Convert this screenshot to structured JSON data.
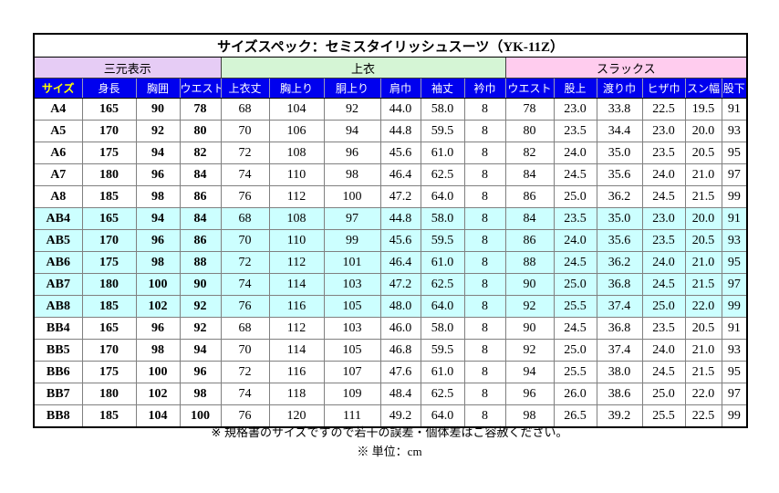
{
  "table": {
    "title": "サイズスペック：セミスタイリッシュスーツ（YK-11Z）",
    "groups": [
      {
        "label": "三元表示",
        "span": 4,
        "bg": "#E6CCF5"
      },
      {
        "label": "上衣",
        "span": 6,
        "bg": "#D5F5D5"
      },
      {
        "label": "スラックス",
        "span": 6,
        "bg": "#FFCCEE"
      }
    ],
    "columns": [
      "サイズ",
      "身長",
      "胸囲",
      "ウエスト",
      "上衣丈",
      "胸上り",
      "胴上り",
      "肩巾",
      "袖丈",
      "衿巾",
      "ウエスト",
      "股上",
      "渡り巾",
      "ヒザ巾",
      "スン幅",
      "股下"
    ],
    "colors": {
      "header_bg": "#0000EE",
      "header_text": "#FFFFFF",
      "header_first_col_text": "#FFFF00",
      "highlight_row_bg": "#CCFFFF",
      "group_sanngen_bg": "#E6CCF5",
      "group_uwagi_bg": "#D5F5D5",
      "group_slacks_bg": "#FFCCEE",
      "inner_border": "#808080",
      "outer_border": "#000000"
    },
    "unit": "cm",
    "rows": [
      {
        "highlight": false,
        "cells": [
          "A4",
          "165",
          "90",
          "78",
          "68",
          "104",
          "92",
          "44.0",
          "58.0",
          "8",
          "78",
          "23.0",
          "33.8",
          "22.5",
          "19.5",
          "91"
        ]
      },
      {
        "highlight": false,
        "cells": [
          "A5",
          "170",
          "92",
          "80",
          "70",
          "106",
          "94",
          "44.8",
          "59.5",
          "8",
          "80",
          "23.5",
          "34.4",
          "23.0",
          "20.0",
          "93"
        ]
      },
      {
        "highlight": false,
        "cells": [
          "A6",
          "175",
          "94",
          "82",
          "72",
          "108",
          "96",
          "45.6",
          "61.0",
          "8",
          "82",
          "24.0",
          "35.0",
          "23.5",
          "20.5",
          "95"
        ]
      },
      {
        "highlight": false,
        "cells": [
          "A7",
          "180",
          "96",
          "84",
          "74",
          "110",
          "98",
          "46.4",
          "62.5",
          "8",
          "84",
          "24.5",
          "35.6",
          "24.0",
          "21.0",
          "97"
        ]
      },
      {
        "highlight": false,
        "cells": [
          "A8",
          "185",
          "98",
          "86",
          "76",
          "112",
          "100",
          "47.2",
          "64.0",
          "8",
          "86",
          "25.0",
          "36.2",
          "24.5",
          "21.5",
          "99"
        ]
      },
      {
        "highlight": true,
        "cells": [
          "AB4",
          "165",
          "94",
          "84",
          "68",
          "108",
          "97",
          "44.8",
          "58.0",
          "8",
          "84",
          "23.5",
          "35.0",
          "23.0",
          "20.0",
          "91"
        ]
      },
      {
        "highlight": true,
        "cells": [
          "AB5",
          "170",
          "96",
          "86",
          "70",
          "110",
          "99",
          "45.6",
          "59.5",
          "8",
          "86",
          "24.0",
          "35.6",
          "23.5",
          "20.5",
          "93"
        ]
      },
      {
        "highlight": true,
        "cells": [
          "AB6",
          "175",
          "98",
          "88",
          "72",
          "112",
          "101",
          "46.4",
          "61.0",
          "8",
          "88",
          "24.5",
          "36.2",
          "24.0",
          "21.0",
          "95"
        ]
      },
      {
        "highlight": true,
        "cells": [
          "AB7",
          "180",
          "100",
          "90",
          "74",
          "114",
          "103",
          "47.2",
          "62.5",
          "8",
          "90",
          "25.0",
          "36.8",
          "24.5",
          "21.5",
          "97"
        ]
      },
      {
        "highlight": true,
        "cells": [
          "AB8",
          "185",
          "102",
          "92",
          "76",
          "116",
          "105",
          "48.0",
          "64.0",
          "8",
          "92",
          "25.5",
          "37.4",
          "25.0",
          "22.0",
          "99"
        ]
      },
      {
        "highlight": false,
        "cells": [
          "BB4",
          "165",
          "96",
          "92",
          "68",
          "112",
          "103",
          "46.0",
          "58.0",
          "8",
          "90",
          "24.5",
          "36.8",
          "23.5",
          "20.5",
          "91"
        ]
      },
      {
        "highlight": false,
        "cells": [
          "BB5",
          "170",
          "98",
          "94",
          "70",
          "114",
          "105",
          "46.8",
          "59.5",
          "8",
          "92",
          "25.0",
          "37.4",
          "24.0",
          "21.0",
          "93"
        ]
      },
      {
        "highlight": false,
        "cells": [
          "BB6",
          "175",
          "100",
          "96",
          "72",
          "116",
          "107",
          "47.6",
          "61.0",
          "8",
          "94",
          "25.5",
          "38.0",
          "24.5",
          "21.5",
          "95"
        ]
      },
      {
        "highlight": false,
        "cells": [
          "BB7",
          "180",
          "102",
          "98",
          "74",
          "118",
          "109",
          "48.4",
          "62.5",
          "8",
          "96",
          "26.0",
          "38.6",
          "25.0",
          "22.0",
          "97"
        ]
      },
      {
        "highlight": false,
        "cells": [
          "BB8",
          "185",
          "104",
          "100",
          "76",
          "120",
          "111",
          "49.2",
          "64.0",
          "8",
          "98",
          "26.5",
          "39.2",
          "25.5",
          "22.5",
          "99"
        ]
      }
    ]
  },
  "notes": {
    "line1": "※ 規格書のサイズですので若干の誤差・個体差はご容赦ください。",
    "line2": "※ 単位：cm"
  }
}
